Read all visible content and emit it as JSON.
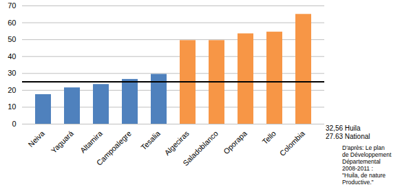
{
  "chart_data": {
    "type": "bar",
    "categories": [
      "Neiva",
      "Yaguará",
      "Altamira",
      "Campoalegre",
      "Tesalia",
      "Algeciras",
      "Saladoblanco",
      "Oporapa",
      "Tello",
      "Colombia"
    ],
    "values": [
      17.5,
      21.5,
      23.5,
      26.5,
      29.5,
      49.5,
      49.5,
      53.5,
      54.5,
      65
    ],
    "colors": [
      "#4f81bd",
      "#4f81bd",
      "#4f81bd",
      "#4f81bd",
      "#4f81bd",
      "#f79646",
      "#f79646",
      "#f79646",
      "#f79646",
      "#f79646"
    ],
    "ylim": [
      0,
      70
    ],
    "yticks": [
      0,
      10,
      20,
      30,
      40,
      50,
      60,
      70
    ],
    "grid": true,
    "reference_value": 25,
    "annotations": [
      "32,56 Huila",
      "27.63 National"
    ],
    "source": [
      "D'après: Le plan",
      "de Développement",
      "Départemental",
      "2008-2011 :",
      "\"Huila, de nature",
      "Productive.\""
    ]
  }
}
